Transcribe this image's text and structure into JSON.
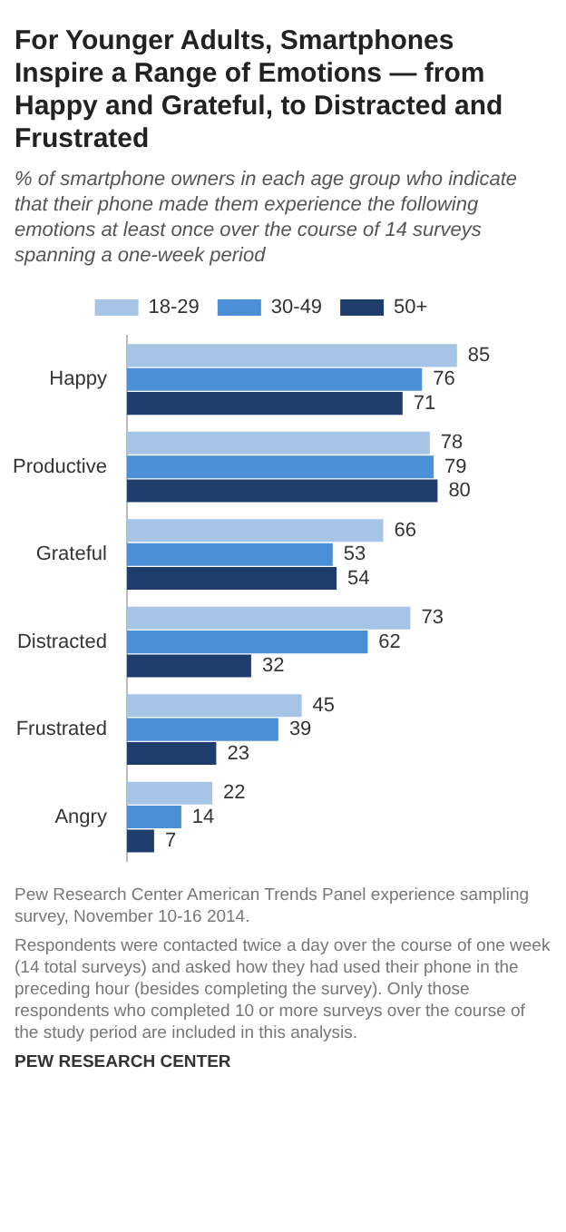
{
  "chart_data": {
    "type": "bar",
    "orientation": "horizontal",
    "title": "For Younger Adults, Smartphones Inspire a Range of Emotions — from Happy and Grateful, to Distracted and Frustrated",
    "subtitle": "% of smartphone owners in each age group who indicate that their phone made them experience the following emotions at least once over the course of 14 surveys spanning a one-week period",
    "categories": [
      "Happy",
      "Productive",
      "Grateful",
      "Distracted",
      "Frustrated",
      "Angry"
    ],
    "series": [
      {
        "name": "18-29",
        "color": "#a6c4e6",
        "values": [
          85,
          78,
          66,
          73,
          45,
          22
        ]
      },
      {
        "name": "30-49",
        "color": "#4b8fd6",
        "values": [
          76,
          79,
          53,
          62,
          39,
          14
        ]
      },
      {
        "name": "50+",
        "color": "#1f3d6b",
        "values": [
          71,
          80,
          54,
          32,
          23,
          7
        ]
      }
    ],
    "data_labels": true,
    "legend": "top",
    "grid": false,
    "tick_labels": "y",
    "annotations": [
      "Pew Research Center American Trends Panel experience sampling survey, November 10-16 2014.",
      "Respondents were contacted twice a day over the course of one week (14 total surveys) and asked how they had used their phone in the preceding hour (besides completing the survey). Only those respondents who completed 10 or more surveys over the course of the study period are included in this analysis.",
      "PEW RESEARCH CENTER"
    ]
  }
}
